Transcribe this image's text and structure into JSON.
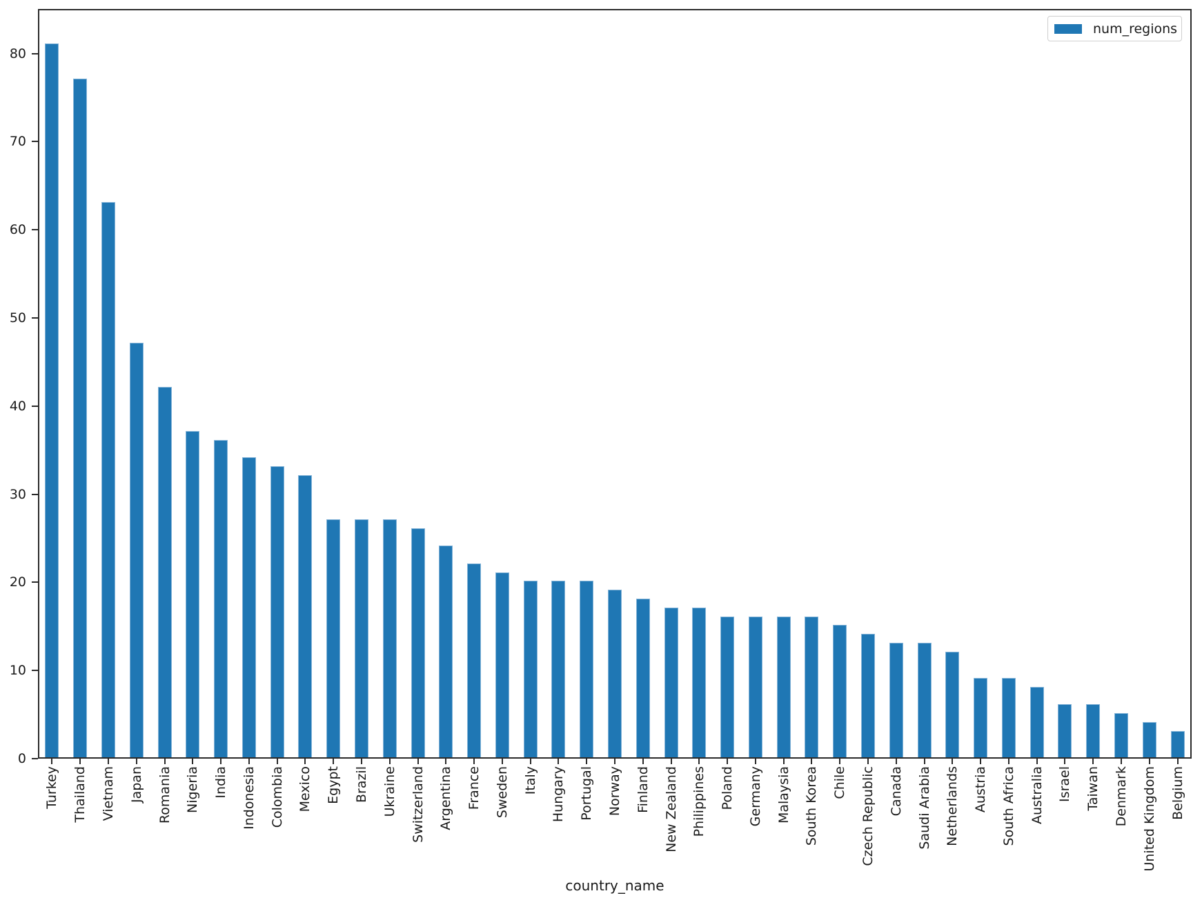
{
  "figure": {
    "background": "#ffffff",
    "spine_color": "#2a2a2a",
    "text_color": "#1a1a1a"
  },
  "chart_data": {
    "type": "bar",
    "title": "",
    "xlabel": "country_name",
    "ylabel": "",
    "legend": {
      "label": "num_regions",
      "position": "upper right",
      "swatch_color": "#1f77b4"
    },
    "bar_color": "#1f77b4",
    "bar_edge_color": "#85b4d8",
    "grid": false,
    "ylim": [
      0,
      85.05
    ],
    "yticks": [
      0,
      10,
      20,
      30,
      40,
      50,
      60,
      70,
      80
    ],
    "categories": [
      "Turkey",
      "Thailand",
      "Vietnam",
      "Japan",
      "Romania",
      "Nigeria",
      "India",
      "Indonesia",
      "Colombia",
      "Mexico",
      "Egypt",
      "Brazil",
      "Ukraine",
      "Switzerland",
      "Argentina",
      "France",
      "Sweden",
      "Italy",
      "Hungary",
      "Portugal",
      "Norway",
      "Finland",
      "New Zealand",
      "Philippines",
      "Poland",
      "Germany",
      "Malaysia",
      "South Korea",
      "Chile",
      "Czech Republic",
      "Canada",
      "Saudi Arabia",
      "Netherlands",
      "Austria",
      "South Africa",
      "Australia",
      "Israel",
      "Taiwan",
      "Denmark",
      "United Kingdom",
      "Belgium"
    ],
    "values": [
      81,
      77,
      63,
      47,
      42,
      37,
      36,
      34,
      33,
      32,
      27,
      27,
      27,
      26,
      24,
      22,
      21,
      20,
      20,
      20,
      19,
      18,
      17,
      17,
      16,
      16,
      16,
      16,
      15,
      14,
      13,
      13,
      12,
      9,
      9,
      8,
      6,
      6,
      5,
      4,
      3
    ]
  }
}
